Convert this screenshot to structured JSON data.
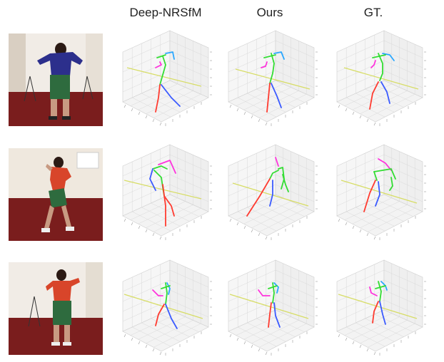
{
  "columns": [
    "Deep-NRSfM",
    "Ours",
    "GT."
  ],
  "colors": {
    "right_limb": "#ff3b30",
    "left_limb": "#3b5bff",
    "torso": "#33dd33",
    "head": "#ff33dd",
    "arm_alt": "#2aa7ff",
    "guide_line": "#d7dd66",
    "grid": "#d9d9d9",
    "floor": "#7a1d1d",
    "wall": "#f1ece6"
  },
  "rows": [
    {
      "id": "row-1",
      "subject": "back view, blue shirt, green shorts"
    },
    {
      "id": "row-2",
      "subject": "bending forward, red top, green shorts"
    },
    {
      "id": "row-3",
      "subject": "back view, red top, green shorts"
    }
  ]
}
